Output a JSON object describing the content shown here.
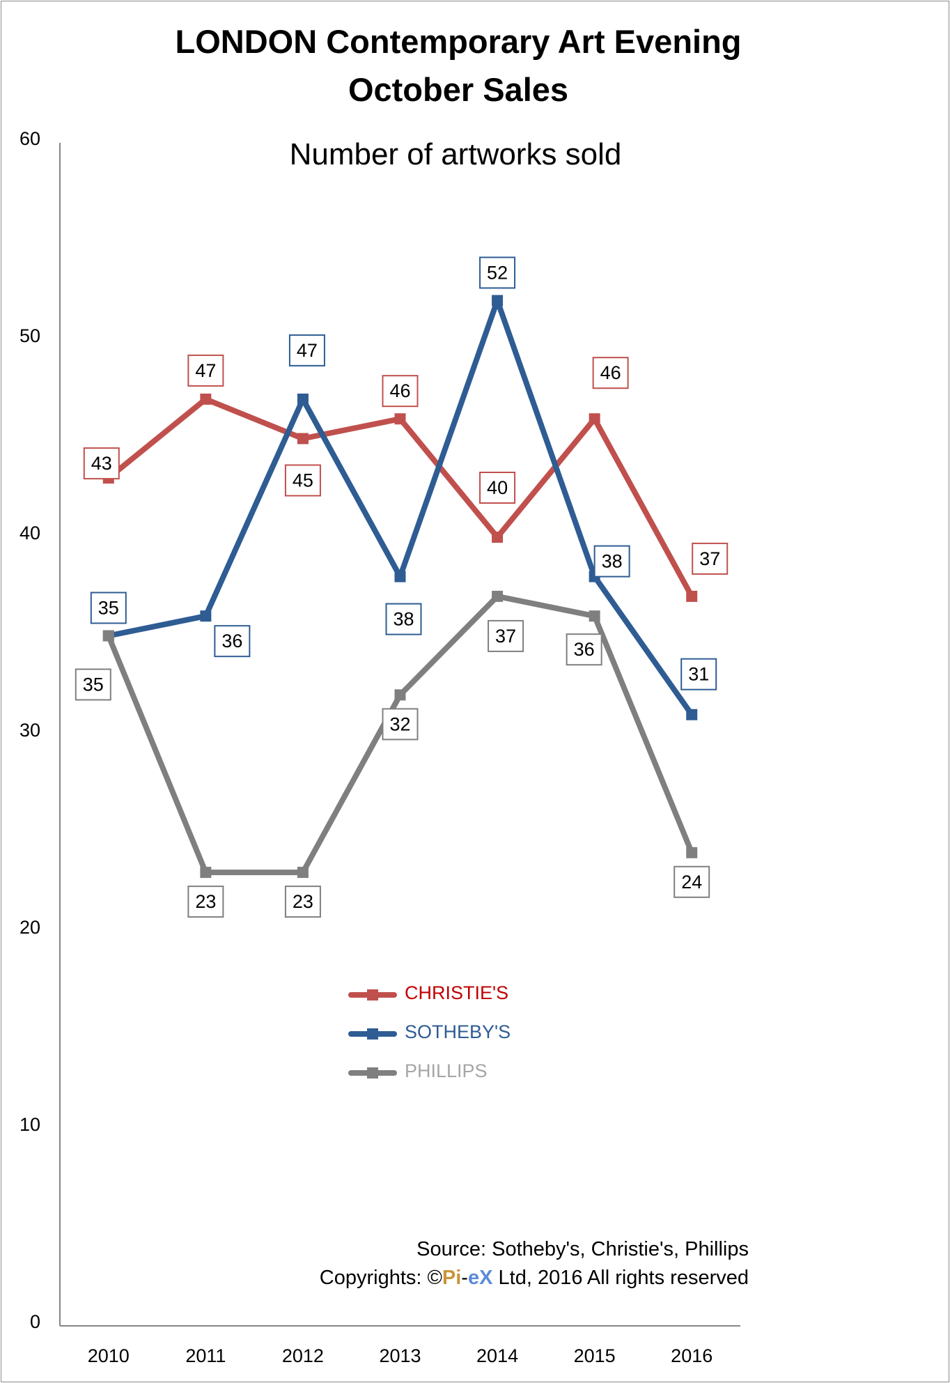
{
  "chart_data": {
    "type": "line",
    "title": "LONDON Contemporary Art Evening",
    "title_line2": "October Sales",
    "subtitle": "Number of artworks sold",
    "categories": [
      "2010",
      "2011",
      "2012",
      "2013",
      "2014",
      "2015",
      "2016"
    ],
    "ylim": [
      0,
      60
    ],
    "yticks": [
      "0",
      "10",
      "20",
      "30",
      "40",
      "50",
      "60"
    ],
    "grid": false,
    "legend_position": "center",
    "series": [
      {
        "name": "CHRISTIE'S",
        "color": "#c0504d",
        "values": [
          43,
          47,
          45,
          46,
          40,
          46,
          37
        ]
      },
      {
        "name": "SOTHEBY'S",
        "color": "#2e5c93",
        "values": [
          35,
          36,
          47,
          38,
          52,
          38,
          31
        ]
      },
      {
        "name": "PHILLIPS",
        "color": "#7f7f7f",
        "values": [
          35,
          23,
          23,
          32,
          37,
          36,
          24
        ]
      }
    ]
  },
  "legend_label_colors": {
    "christies": "#c00000",
    "sothebys": "#2e5c93",
    "phillips": "#a6a6a6"
  },
  "source_note": {
    "source": "Source: Sotheby's, Christie's, Phillips",
    "copyright_prefix": "Copyrights: ©",
    "brand_pi": "Pi",
    "brand_dash": "-",
    "brand_ex": "eX",
    "copyright_suffix": " Ltd, 2016 All rights reserved"
  }
}
